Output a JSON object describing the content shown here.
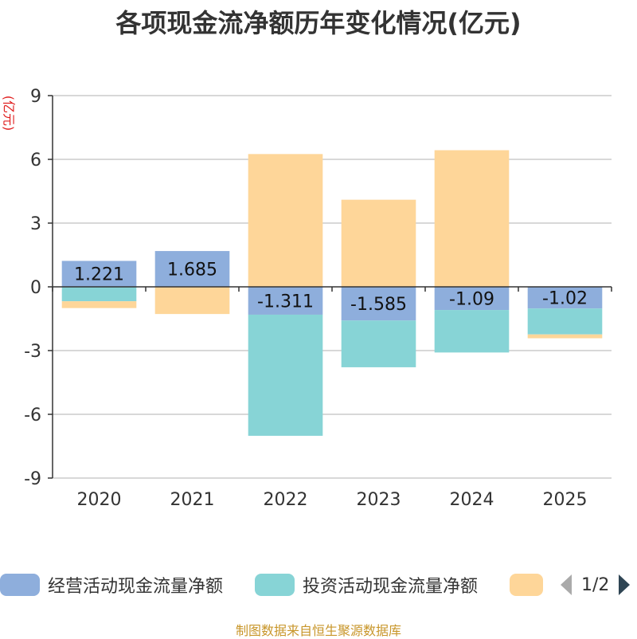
{
  "title": "各项现金流净额历年变化情况(亿元)",
  "y_unit_label": "(亿元)",
  "source_text": "制图数据来自恒生聚源数据库",
  "legend": {
    "items": [
      {
        "label": "经营活动现金流量净额",
        "color": "#8eaedc"
      },
      {
        "label": "投资活动现金流量净额",
        "color": "#87d4d6"
      },
      {
        "label": "",
        "color": "#fed699"
      }
    ],
    "page_text": "1/2"
  },
  "chart_data": {
    "type": "bar",
    "stacked": true,
    "title": "各项现金流净额历年变化情况(亿元)",
    "ylabel": "(亿元)",
    "xlabel": "",
    "categories": [
      "2020",
      "2021",
      "2022",
      "2023",
      "2024",
      "2025"
    ],
    "ylim": [
      -9,
      9
    ],
    "yticks": [
      9,
      6,
      3,
      0,
      -3,
      -6,
      -9
    ],
    "series": [
      {
        "name": "经营活动现金流量净额",
        "color": "#8eaedc",
        "values": [
          1.221,
          1.685,
          -1.311,
          -1.585,
          -1.09,
          -1.02
        ],
        "labels": [
          "1.221",
          "1.685",
          "-1.311",
          "-1.585",
          "-1.09",
          "-1.02"
        ]
      },
      {
        "name": "投资活动现金流量净额",
        "color": "#87d4d6",
        "values": [
          -0.68,
          0.0,
          -5.7,
          -2.2,
          -2.0,
          -1.22
        ]
      },
      {
        "name": "",
        "color": "#fed699",
        "values": [
          -0.32,
          -1.28,
          6.25,
          4.1,
          6.43,
          -0.18
        ]
      }
    ]
  }
}
